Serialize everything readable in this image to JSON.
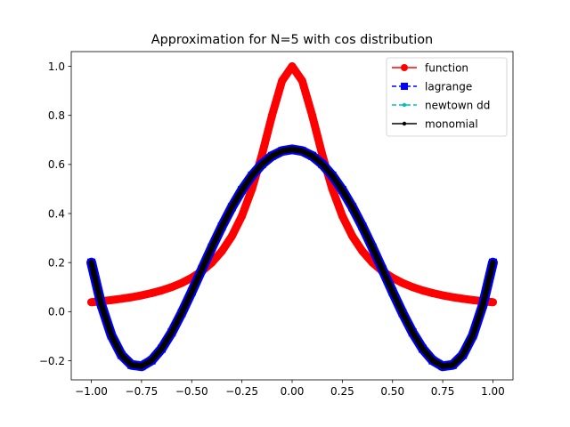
{
  "chart_data": {
    "type": "line",
    "title": "Approximation for N=5 with cos distribution",
    "xlabel": "",
    "ylabel": "",
    "xlim": [
      -1.1,
      1.1
    ],
    "ylim": [
      -0.278,
      1.06
    ],
    "x_ticks": [
      -1.0,
      -0.75,
      -0.5,
      -0.25,
      0.0,
      0.25,
      0.5,
      0.75,
      1.0
    ],
    "x_tick_labels": [
      "−1.00",
      "−0.75",
      "−0.50",
      "−0.25",
      "0.00",
      "0.25",
      "0.50",
      "0.75",
      "1.00"
    ],
    "y_ticks": [
      -0.2,
      0.0,
      0.2,
      0.4,
      0.6,
      0.8,
      1.0
    ],
    "y_tick_labels": [
      "−0.2",
      "0.0",
      "0.2",
      "0.4",
      "0.6",
      "0.8",
      "1.0"
    ],
    "grid": false,
    "legend_position": "top-right",
    "x": [
      -1.0,
      -0.95,
      -0.9,
      -0.85,
      -0.8,
      -0.75,
      -0.7,
      -0.65,
      -0.6,
      -0.55,
      -0.5,
      -0.45,
      -0.4,
      -0.35,
      -0.3,
      -0.25,
      -0.2,
      -0.15,
      -0.1,
      -0.05,
      0.0,
      0.05,
      0.1,
      0.15,
      0.2,
      0.25,
      0.3,
      0.35,
      0.4,
      0.45,
      0.5,
      0.55,
      0.6,
      0.65,
      0.7,
      0.75,
      0.8,
      0.85,
      0.9,
      0.95,
      1.0
    ],
    "series": [
      {
        "name": "function",
        "color": "#ff0000",
        "style": "solid",
        "marker": "circle",
        "values": [
          0.0385,
          0.0424,
          0.0471,
          0.0525,
          0.0588,
          0.0664,
          0.0755,
          0.0865,
          0.1,
          0.1168,
          0.1379,
          0.165,
          0.2,
          0.2462,
          0.3077,
          0.3902,
          0.5,
          0.64,
          0.8,
          0.9412,
          1.0,
          0.9412,
          0.8,
          0.64,
          0.5,
          0.3902,
          0.3077,
          0.2462,
          0.2,
          0.165,
          0.1379,
          0.1168,
          0.1,
          0.0865,
          0.0755,
          0.0664,
          0.0588,
          0.0525,
          0.0471,
          0.0424,
          0.0385
        ]
      },
      {
        "name": "lagrange",
        "color": "#0000ff",
        "style": "dashed",
        "marker": "square",
        "values": [
          0.2,
          0.0277,
          -0.0966,
          -0.1766,
          -0.2169,
          -0.2226,
          -0.1988,
          -0.1511,
          -0.0848,
          -0.0057,
          0.0812,
          0.1715,
          0.2614,
          0.3472,
          0.4262,
          0.4959,
          0.5546,
          0.6011,
          0.6347,
          0.6548,
          0.6616,
          0.6548,
          0.6347,
          0.6011,
          0.5546,
          0.4959,
          0.4262,
          0.3472,
          0.2614,
          0.1715,
          0.0812,
          -0.0057,
          -0.0848,
          -0.1511,
          -0.1988,
          -0.2226,
          -0.2169,
          -0.1766,
          -0.0966,
          0.0277,
          0.2
        ]
      },
      {
        "name": "newtown dd",
        "color": "#00bfbf",
        "style": "dashed",
        "marker": "point",
        "values": [
          0.2,
          0.0277,
          -0.0966,
          -0.1766,
          -0.2169,
          -0.2226,
          -0.1988,
          -0.1511,
          -0.0848,
          -0.0057,
          0.0812,
          0.1715,
          0.2614,
          0.3472,
          0.4262,
          0.4959,
          0.5546,
          0.6011,
          0.6347,
          0.6548,
          0.6616,
          0.6548,
          0.6347,
          0.6011,
          0.5546,
          0.4959,
          0.4262,
          0.3472,
          0.2614,
          0.1715,
          0.0812,
          -0.0057,
          -0.0848,
          -0.1511,
          -0.1988,
          -0.2226,
          -0.2169,
          -0.1766,
          -0.0966,
          0.0277,
          0.2
        ]
      },
      {
        "name": "monomial",
        "color": "#000000",
        "style": "solid",
        "marker": "point",
        "values": [
          0.2,
          0.0277,
          -0.0966,
          -0.1766,
          -0.2169,
          -0.2226,
          -0.1988,
          -0.1511,
          -0.0848,
          -0.0057,
          0.0812,
          0.1715,
          0.2614,
          0.3472,
          0.4262,
          0.4959,
          0.5546,
          0.6011,
          0.6347,
          0.6548,
          0.6616,
          0.6548,
          0.6347,
          0.6011,
          0.5546,
          0.4959,
          0.4262,
          0.3472,
          0.2614,
          0.1715,
          0.0812,
          -0.0057,
          -0.0848,
          -0.1511,
          -0.1988,
          -0.2226,
          -0.2169,
          -0.1766,
          -0.0966,
          0.0277,
          0.2
        ]
      }
    ]
  }
}
